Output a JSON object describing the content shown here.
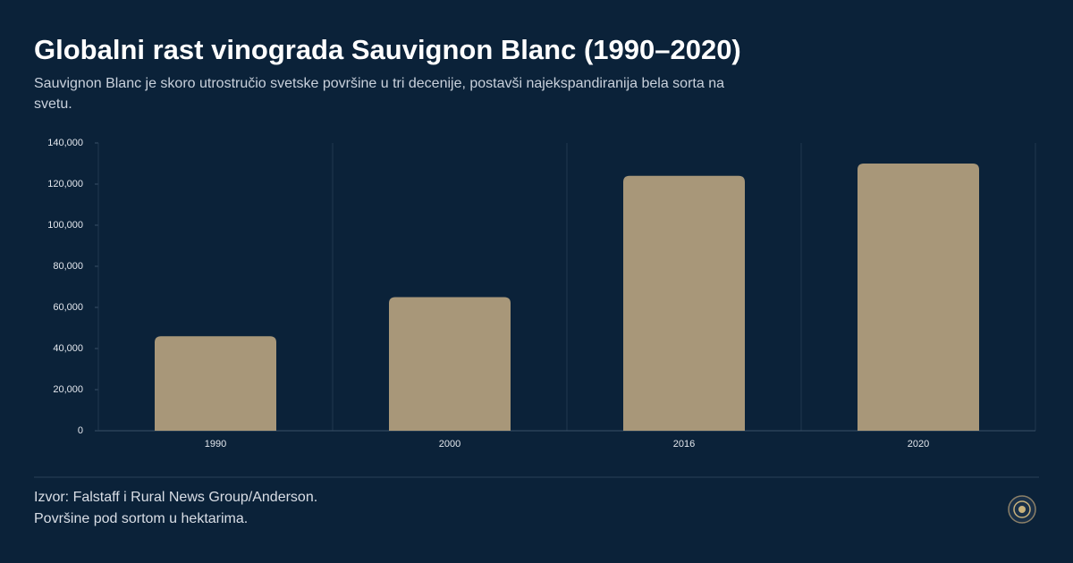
{
  "chart_data": {
    "type": "bar",
    "title": "Globalni rast vinograda Sauvignon Blanc (1990–2020)",
    "subtitle": "Sauvignon Blanc je skoro utrostručio svetske površine u tri decenije, postavši najekspandiranija bela sorta na svetu.",
    "categories": [
      "1990",
      "2000",
      "2016",
      "2020"
    ],
    "values": [
      46000,
      65000,
      124000,
      130000
    ],
    "color": "#a89779",
    "ylim": [
      0,
      140000
    ],
    "yticks": [
      0,
      {
        "value": 20000,
        "label": "20,000"
      },
      {
        "value": 40000,
        "label": "40,000"
      },
      {
        "value": 60000,
        "label": "60,000"
      },
      {
        "value": 80000,
        "label": "80,000"
      },
      {
        "value": 100000,
        "label": "100,000"
      },
      {
        "value": 120000,
        "label": "120,000"
      },
      {
        "value": 140000,
        "label": "140,000"
      }
    ],
    "grid": true,
    "source": [
      "Izvor: Falstaff i Rural News Group/Anderson.",
      "Površine pod sortom u hektarima."
    ]
  }
}
